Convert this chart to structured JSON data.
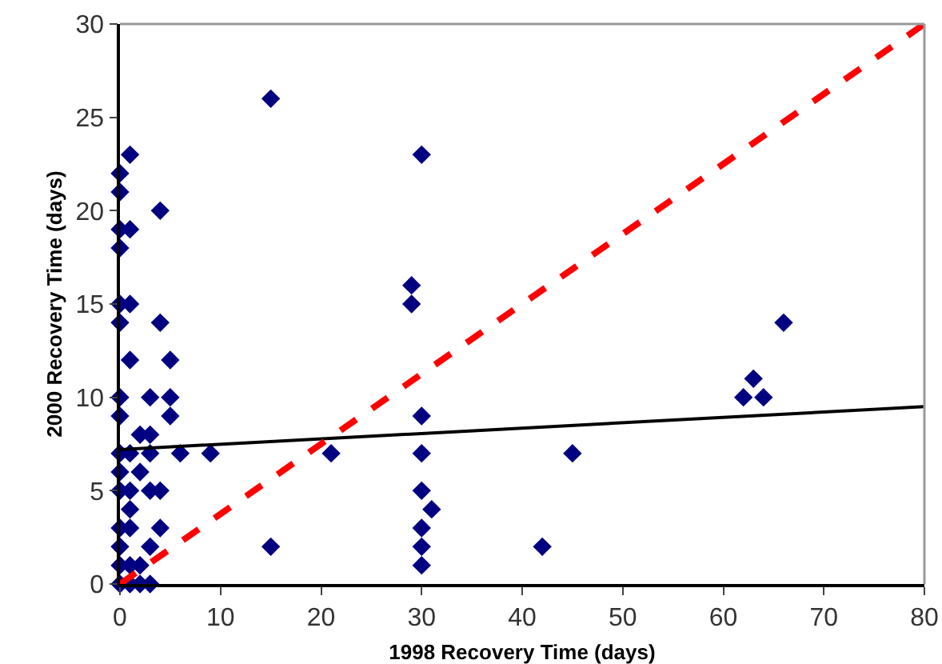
{
  "chart_data": {
    "type": "scatter",
    "xlabel": "1998 Recovery Time (days)",
    "ylabel": "2000 Recovery Time (days)",
    "xlim": [
      0,
      80
    ],
    "xticks": [
      0,
      10,
      20,
      30,
      40,
      50,
      60,
      70,
      80
    ],
    "ylim": [
      0,
      30
    ],
    "yticks": [
      0,
      5,
      10,
      15,
      20,
      25,
      30
    ],
    "grid": false,
    "marker": "diamond",
    "series": [
      {
        "color": "#000080",
        "x": [
          0,
          0,
          0,
          0,
          0,
          0,
          0,
          0,
          0,
          0,
          0,
          0,
          0,
          0,
          0,
          1,
          1,
          1,
          1,
          1,
          1,
          1,
          1,
          1,
          1,
          2,
          2,
          2,
          2,
          3,
          3,
          3,
          3,
          3,
          3,
          4,
          4,
          4,
          4,
          5,
          5,
          5,
          6,
          9,
          15,
          15,
          21,
          29,
          29,
          30,
          30,
          30,
          30,
          30,
          30,
          30,
          31,
          42,
          45,
          62,
          63,
          64,
          66
        ],
        "values": [
          22,
          21,
          19,
          18,
          15,
          14,
          10,
          9,
          7,
          6,
          5,
          3,
          2,
          1,
          0,
          23,
          19,
          15,
          12,
          7,
          5,
          4,
          3,
          1,
          0,
          8,
          6,
          1,
          0,
          10,
          8,
          7,
          5,
          2,
          0,
          20,
          14,
          5,
          3,
          12,
          10,
          9,
          7,
          7,
          26,
          2,
          7,
          16,
          15,
          23,
          9,
          7,
          5,
          3,
          2,
          1,
          4,
          2,
          7,
          10,
          11,
          10,
          14
        ]
      },
      {
        "type": "line",
        "color": "#000000",
        "line_style": "solid",
        "marker": "none",
        "x": [
          0,
          80
        ],
        "values": [
          7.2,
          9.5
        ]
      },
      {
        "type": "line",
        "color": "#ff0000",
        "line_style": "dashed",
        "marker": "none",
        "x": [
          0,
          80
        ],
        "values": [
          0,
          30
        ]
      }
    ]
  }
}
